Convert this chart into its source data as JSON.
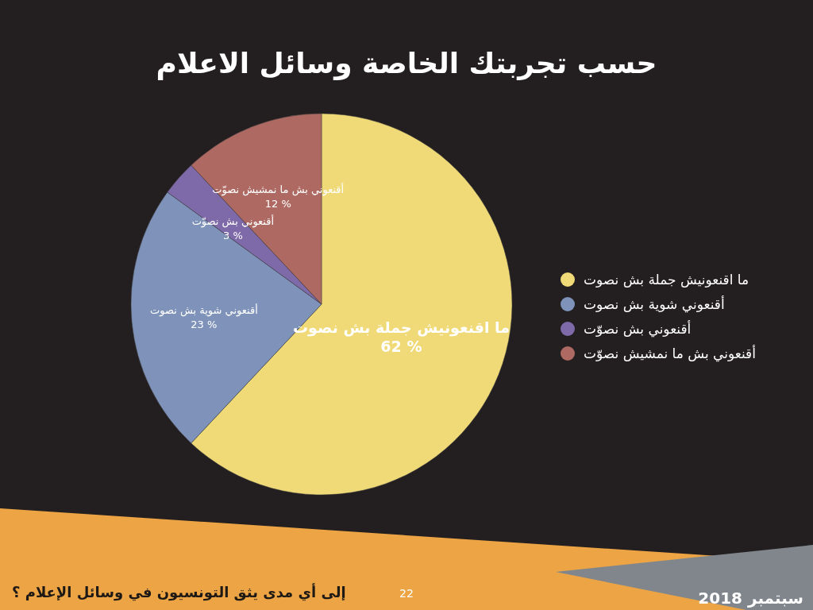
{
  "chart_data": {
    "type": "pie",
    "title": "حسب تجربتك الخاصة وسائل الاعلام",
    "categories": [
      "ما اقنعونيش جملة بش نصوت",
      "أقنعوني شوية بش نصوت",
      "أقنعوني بش نصوّت",
      "أقنعوني بش ما نمشيش نصوّت"
    ],
    "values": [
      62,
      23,
      3,
      12
    ],
    "colors": [
      "#f0da78",
      "#7f93ba",
      "#7e6aa9",
      "#ae6a62"
    ],
    "value_labels": [
      "62 %",
      "23 %",
      "3 %",
      "12 %"
    ],
    "legend": "right",
    "annotations": [
      "إلى أي مدى يثق التونسيون في وسائل الإعلام ؟",
      "سبتمبر 2018",
      "22"
    ]
  }
}
